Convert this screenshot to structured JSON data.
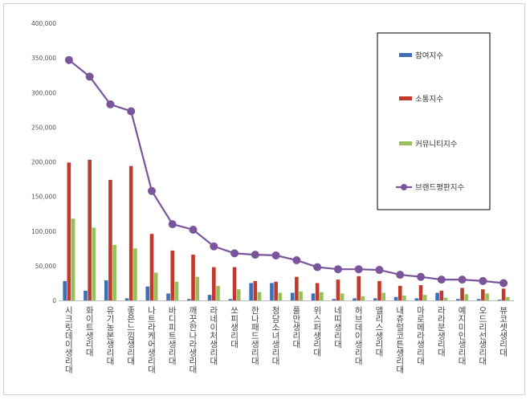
{
  "chart_data": {
    "type": "bar",
    "title": "",
    "xlabel": "",
    "ylabel": "",
    "ylim": [
      0,
      400000
    ],
    "yticks": [
      "0",
      "50,000",
      "100,000",
      "150,000",
      "200,000",
      "250,000",
      "300,000",
      "350,000",
      "400,000"
    ],
    "grid": false,
    "legend_position": "top-right",
    "categories": [
      "시크릿데이생리대",
      "화이트생리대",
      "유기농본생리대",
      "좋은느낌생리대",
      "나트라케어생리대",
      "바디피트생리대",
      "깨끗한나라생리대",
      "라네이처생리대",
      "쏘피생리대",
      "한나패드생리대",
      "청담소녀생리대",
      "풀만생리대",
      "위스퍼생리대",
      "네띠생리대",
      "허브데이생리대",
      "앨리스생리대",
      "내츄럴코튼생리대",
      "마로메라생리대",
      "라라문생리대",
      "예지미인생리대",
      "오드리선생리대",
      "뷰코셋생리대"
    ],
    "series": [
      {
        "name": "참여지수",
        "type": "bar",
        "color": "#3f6fb5",
        "values": [
          28000,
          14000,
          29000,
          3000,
          20000,
          10000,
          2000,
          8000,
          2000,
          25000,
          25000,
          11000,
          10000,
          2000,
          3000,
          3000,
          5000,
          3000,
          11000,
          2000,
          2000,
          1000
        ]
      },
      {
        "name": "소통지수",
        "type": "bar",
        "color": "#c0392b",
        "values": [
          199000,
          203000,
          174000,
          194000,
          96000,
          72000,
          66000,
          48000,
          48000,
          28000,
          27000,
          34000,
          25000,
          30000,
          35000,
          28000,
          21000,
          22000,
          14000,
          18000,
          16000,
          17000
        ]
      },
      {
        "name": "커뮤니티지수",
        "type": "bar",
        "color": "#96c159",
        "values": [
          118000,
          105000,
          80000,
          75000,
          40000,
          27000,
          34000,
          21000,
          16000,
          12000,
          11000,
          13000,
          12000,
          10000,
          6000,
          11000,
          7000,
          8000,
          4000,
          9000,
          10000,
          5000
        ]
      },
      {
        "name": "브랜드평판지수",
        "type": "line",
        "color": "#7a559c",
        "values": [
          347000,
          323000,
          283000,
          273000,
          158000,
          110000,
          102000,
          78000,
          68000,
          66000,
          65000,
          58000,
          48000,
          45000,
          45000,
          44000,
          37000,
          34000,
          30000,
          30000,
          28000,
          25000
        ]
      }
    ]
  }
}
